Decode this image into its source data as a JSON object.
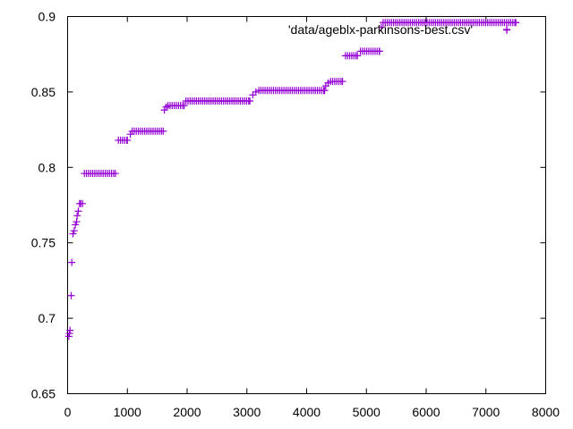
{
  "chart_data": {
    "type": "scatter",
    "title": "",
    "xlabel": "",
    "ylabel": "",
    "xlim": [
      0,
      8000
    ],
    "ylim": [
      0.65,
      0.9
    ],
    "x_ticks": [
      "0",
      "1000",
      "2000",
      "3000",
      "4000",
      "5000",
      "6000",
      "7000",
      "8000"
    ],
    "y_ticks": [
      "0.65",
      "0.7",
      "0.75",
      "0.8",
      "0.85",
      "0.9"
    ],
    "grid": false,
    "legend_position": "top-right",
    "marker_color": "#9400d3",
    "series": [
      {
        "name": "'data/ageblx-parkinsons-best.csv'",
        "points": [
          [
            20,
            0.688
          ],
          [
            30,
            0.69
          ],
          [
            40,
            0.692
          ],
          [
            60,
            0.715
          ],
          [
            70,
            0.737
          ],
          [
            90,
            0.756
          ],
          [
            110,
            0.758
          ],
          [
            130,
            0.762
          ],
          [
            150,
            0.764
          ],
          [
            160,
            0.768
          ],
          [
            180,
            0.771
          ],
          [
            200,
            0.776
          ],
          [
            220,
            0.776
          ],
          [
            250,
            0.776
          ],
          [
            280,
            0.796
          ],
          [
            800,
            0.796
          ],
          [
            850,
            0.818
          ],
          [
            1000,
            0.818
          ],
          [
            1050,
            0.822
          ],
          [
            1080,
            0.824
          ],
          [
            1600,
            0.824
          ],
          [
            1620,
            0.838
          ],
          [
            1650,
            0.84
          ],
          [
            1680,
            0.841
          ],
          [
            1950,
            0.841
          ],
          [
            1980,
            0.844
          ],
          [
            3050,
            0.844
          ],
          [
            3100,
            0.848
          ],
          [
            3150,
            0.85
          ],
          [
            3200,
            0.851
          ],
          [
            4300,
            0.851
          ],
          [
            4320,
            0.854
          ],
          [
            4360,
            0.856
          ],
          [
            4400,
            0.857
          ],
          [
            4600,
            0.857
          ],
          [
            4650,
            0.874
          ],
          [
            4850,
            0.874
          ],
          [
            4900,
            0.877
          ],
          [
            5220,
            0.877
          ],
          [
            5250,
            0.893
          ],
          [
            5280,
            0.896
          ],
          [
            7500,
            0.896
          ],
          [
            7350,
            0.891
          ]
        ]
      }
    ]
  }
}
